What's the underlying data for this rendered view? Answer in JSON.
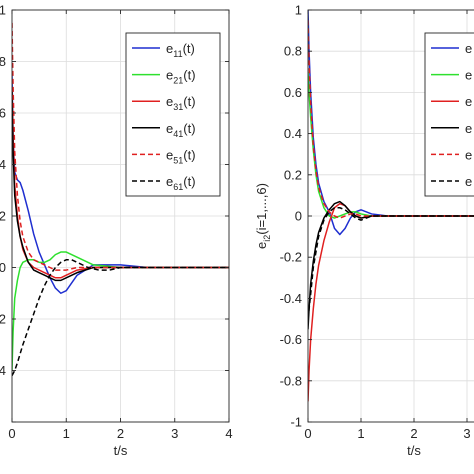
{
  "chart_data": [
    {
      "type": "line",
      "title": "",
      "xlabel": "t/s",
      "ylabel": "",
      "xlim": [
        0,
        4
      ],
      "ylim": [
        -0.6,
        1.0
      ],
      "xticks": [
        "0",
        "1",
        "2",
        "3",
        "4"
      ],
      "yticks": [
        "",
        ".4",
        ".2",
        "0",
        ".2",
        ".4",
        ".6",
        ".8",
        "1"
      ],
      "grid": true,
      "legend_position": "top-right",
      "legend_labels": [
        "e",
        "e",
        "e",
        "e",
        "e",
        "e"
      ],
      "legend_subs": [
        "11",
        "21",
        "31",
        "41",
        "51",
        "61"
      ],
      "legend_suffix": "(t)",
      "series": [
        {
          "name": "e11(t)",
          "color": "#1f2fd0",
          "dash": "solid",
          "x": [
            0,
            0.02,
            0.05,
            0.1,
            0.15,
            0.2,
            0.3,
            0.4,
            0.5,
            0.6,
            0.7,
            0.8,
            0.9,
            1.0,
            1.2,
            1.5,
            2.0,
            2.5,
            3.0,
            4.0
          ],
          "y": [
            0.75,
            0.5,
            0.37,
            0.34,
            0.33,
            0.3,
            0.22,
            0.13,
            0.06,
            0.01,
            -0.04,
            -0.08,
            -0.1,
            -0.09,
            -0.03,
            0.01,
            0.01,
            0.0,
            0.0,
            0.0
          ]
        },
        {
          "name": "e21(t)",
          "color": "#2ee02e",
          "dash": "solid",
          "x": [
            0,
            0.02,
            0.05,
            0.1,
            0.15,
            0.2,
            0.3,
            0.4,
            0.5,
            0.6,
            0.7,
            0.8,
            0.9,
            1.0,
            1.2,
            1.5,
            2.0,
            2.5,
            3.0,
            4.0
          ],
          "y": [
            -0.4,
            -0.25,
            -0.12,
            -0.05,
            0.0,
            0.02,
            0.03,
            0.03,
            0.02,
            0.02,
            0.03,
            0.05,
            0.06,
            0.06,
            0.04,
            0.01,
            0.0,
            0.0,
            0.0,
            0.0
          ]
        },
        {
          "name": "e31(t)",
          "color": "#e02020",
          "dash": "solid",
          "x": [
            0,
            0.02,
            0.05,
            0.1,
            0.15,
            0.2,
            0.3,
            0.4,
            0.5,
            0.6,
            0.7,
            0.8,
            0.9,
            1.0,
            1.2,
            1.5,
            2.0,
            2.5,
            3.0,
            4.0
          ],
          "y": [
            0.7,
            0.5,
            0.32,
            0.2,
            0.12,
            0.07,
            0.02,
            0.0,
            -0.01,
            -0.02,
            -0.03,
            -0.04,
            -0.04,
            -0.03,
            -0.01,
            0.0,
            0.0,
            0.0,
            0.0,
            0.0
          ]
        },
        {
          "name": "e41(t)",
          "color": "#000000",
          "dash": "solid",
          "x": [
            0,
            0.02,
            0.05,
            0.1,
            0.15,
            0.2,
            0.3,
            0.4,
            0.5,
            0.6,
            0.7,
            0.8,
            0.9,
            1.0,
            1.2,
            1.5,
            2.0,
            2.5,
            3.0,
            4.0
          ],
          "y": [
            0.7,
            0.45,
            0.28,
            0.18,
            0.12,
            0.08,
            0.02,
            -0.01,
            -0.02,
            -0.03,
            -0.04,
            -0.05,
            -0.05,
            -0.04,
            -0.02,
            0.0,
            0.0,
            0.0,
            0.0,
            0.0
          ]
        },
        {
          "name": "e51(t)",
          "color": "#e02020",
          "dash": "dashed",
          "x": [
            0,
            0.02,
            0.05,
            0.1,
            0.15,
            0.2,
            0.3,
            0.4,
            0.5,
            0.6,
            0.7,
            0.8,
            0.9,
            1.0,
            1.2,
            1.5,
            2.0,
            2.5,
            3.0,
            4.0
          ],
          "y": [
            0.95,
            0.7,
            0.45,
            0.28,
            0.18,
            0.12,
            0.06,
            0.03,
            0.02,
            0.01,
            0.0,
            -0.01,
            -0.01,
            -0.01,
            0.0,
            0.0,
            0.0,
            0.0,
            0.0,
            0.0
          ]
        },
        {
          "name": "e61(t)",
          "color": "#000000",
          "dash": "dashed",
          "x": [
            0,
            0.05,
            0.1,
            0.2,
            0.3,
            0.4,
            0.5,
            0.6,
            0.7,
            0.8,
            0.9,
            1.0,
            1.1,
            1.2,
            1.4,
            1.6,
            1.8,
            2.0,
            2.5,
            3.0,
            4.0
          ],
          "y": [
            -0.42,
            -0.4,
            -0.37,
            -0.3,
            -0.24,
            -0.18,
            -0.12,
            -0.07,
            -0.03,
            0.0,
            0.02,
            0.03,
            0.03,
            0.02,
            0.0,
            -0.01,
            -0.01,
            0.0,
            0.0,
            0.0,
            0.0
          ]
        }
      ]
    },
    {
      "type": "line",
      "title": "",
      "xlabel": "t/s",
      "ylabel_main": "e",
      "ylabel_sub": "i2",
      "ylabel_rest": "(i=1,...,6)",
      "xlim": [
        0,
        4
      ],
      "ylim": [
        -1.0,
        1.0
      ],
      "xticks": [
        "0",
        "1",
        "2",
        "3"
      ],
      "yticks": [
        "-1",
        "-0.8",
        "-0.6",
        "-0.4",
        "-0.2",
        "0",
        "0.2",
        "0.4",
        "0.6",
        "0.8",
        "1"
      ],
      "grid": true,
      "legend_position": "top-right",
      "legend_labels": [
        "e",
        "e",
        "e",
        "e",
        "e",
        "e"
      ],
      "series": [
        {
          "name": "",
          "color": "#1f2fd0",
          "dash": "solid",
          "x": [
            0,
            0.02,
            0.05,
            0.1,
            0.15,
            0.2,
            0.3,
            0.4,
            0.5,
            0.6,
            0.7,
            0.8,
            0.9,
            1.0,
            1.2,
            1.5,
            2.0,
            3.0,
            4.0
          ],
          "y": [
            1.0,
            0.8,
            0.6,
            0.38,
            0.25,
            0.16,
            0.07,
            0.02,
            -0.06,
            -0.09,
            -0.06,
            -0.01,
            0.02,
            0.03,
            0.01,
            0.0,
            0.0,
            0.0,
            0.0
          ]
        },
        {
          "name": "",
          "color": "#2ee02e",
          "dash": "solid",
          "x": [
            0,
            0.02,
            0.05,
            0.1,
            0.15,
            0.2,
            0.3,
            0.4,
            0.5,
            0.6,
            0.7,
            0.8,
            0.9,
            1.0,
            1.2,
            1.5,
            2.0,
            3.0,
            4.0
          ],
          "y": [
            0.7,
            0.6,
            0.48,
            0.32,
            0.2,
            0.12,
            0.04,
            0.0,
            -0.01,
            0.0,
            0.01,
            0.02,
            0.02,
            0.01,
            0.0,
            0.0,
            0.0,
            0.0,
            0.0
          ]
        },
        {
          "name": "",
          "color": "#e02020",
          "dash": "solid",
          "x": [
            0,
            0.02,
            0.05,
            0.1,
            0.15,
            0.2,
            0.3,
            0.4,
            0.5,
            0.6,
            0.7,
            0.8,
            0.9,
            1.0,
            1.2,
            1.5,
            2.0,
            3.0,
            4.0
          ],
          "y": [
            -0.9,
            -0.75,
            -0.6,
            -0.45,
            -0.33,
            -0.24,
            -0.12,
            -0.03,
            0.04,
            0.06,
            0.05,
            0.02,
            0.0,
            -0.01,
            0.0,
            0.0,
            0.0,
            0.0,
            0.0
          ]
        },
        {
          "name": "",
          "color": "#000000",
          "dash": "solid",
          "x": [
            0,
            0.02,
            0.05,
            0.1,
            0.15,
            0.2,
            0.3,
            0.4,
            0.5,
            0.6,
            0.7,
            0.8,
            0.9,
            1.0,
            1.2,
            1.5,
            2.0,
            3.0,
            4.0
          ],
          "y": [
            -0.55,
            -0.45,
            -0.33,
            -0.22,
            -0.14,
            -0.08,
            -0.01,
            0.03,
            0.06,
            0.07,
            0.05,
            0.02,
            0.0,
            -0.01,
            0.0,
            0.0,
            0.0,
            0.0,
            0.0
          ]
        },
        {
          "name": "",
          "color": "#e02020",
          "dash": "dashed",
          "x": [
            0,
            0.02,
            0.05,
            0.1,
            0.15,
            0.2,
            0.3,
            0.4,
            0.5,
            0.6,
            0.7,
            0.8,
            0.9,
            1.0,
            1.2,
            1.5,
            2.0,
            3.0,
            4.0
          ],
          "y": [
            0.95,
            0.75,
            0.55,
            0.34,
            0.22,
            0.14,
            0.06,
            0.02,
            0.0,
            -0.01,
            0.0,
            0.01,
            0.01,
            0.0,
            0.0,
            0.0,
            0.0,
            0.0,
            0.0
          ]
        },
        {
          "name": "",
          "color": "#000000",
          "dash": "dashed",
          "x": [
            0,
            0.05,
            0.1,
            0.2,
            0.3,
            0.4,
            0.5,
            0.6,
            0.7,
            0.8,
            0.9,
            1.0,
            1.1,
            1.2,
            1.5,
            2.0,
            3.0,
            4.0
          ],
          "y": [
            -0.5,
            -0.38,
            -0.25,
            -0.1,
            -0.02,
            0.02,
            0.04,
            0.04,
            0.03,
            0.01,
            -0.01,
            -0.02,
            -0.01,
            0.0,
            0.0,
            0.0,
            0.0,
            0.0
          ]
        }
      ]
    }
  ]
}
